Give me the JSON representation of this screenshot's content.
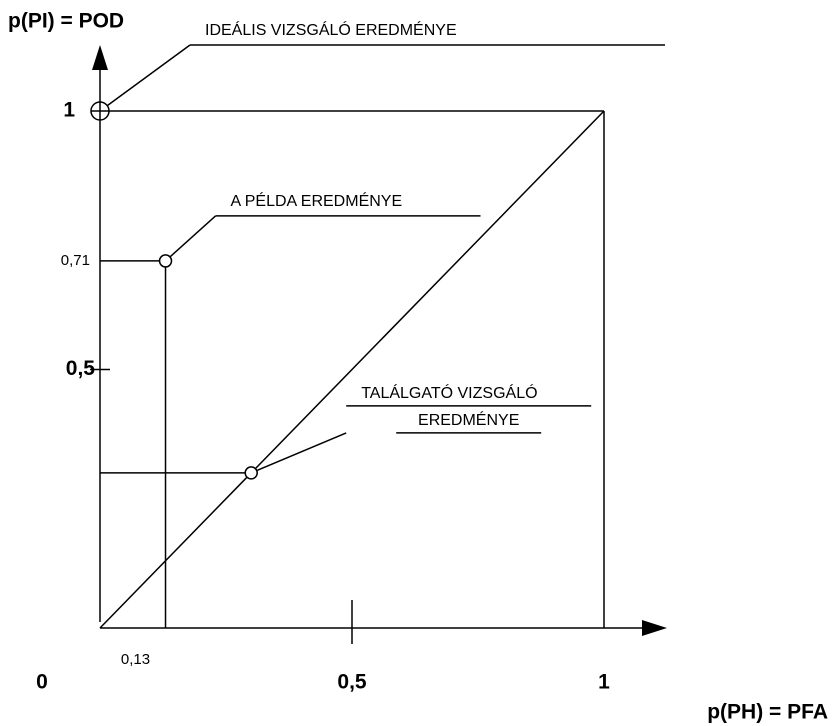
{
  "chart_data": {
    "type": "scatter",
    "x_axis_label": "p(PH) = PFA",
    "y_axis_label": "p(PI) = POD",
    "xlim": [
      0,
      1
    ],
    "ylim": [
      0,
      1
    ],
    "xticks": [
      0,
      {
        "value": 0.13,
        "label": "0,13"
      },
      {
        "value": 0.5,
        "label": "0,5"
      },
      1
    ],
    "yticks": [
      {
        "value": 0.5,
        "label": "0,5"
      },
      {
        "value": 0.71,
        "label": "0,71"
      },
      1
    ],
    "x": [
      0,
      0.13,
      0.3
    ],
    "values": [
      1,
      0.71,
      0.3
    ],
    "annotations": [
      [
        "IDEÁLIS VIZSGÁLÓ EREDMÉNYE"
      ],
      [
        "A PÉLDA EREDMÉNYE"
      ],
      [
        "TALÁLGATÓ VIZSGÁLÓ",
        "EREDMÉNYE"
      ]
    ],
    "color": "#000000"
  }
}
